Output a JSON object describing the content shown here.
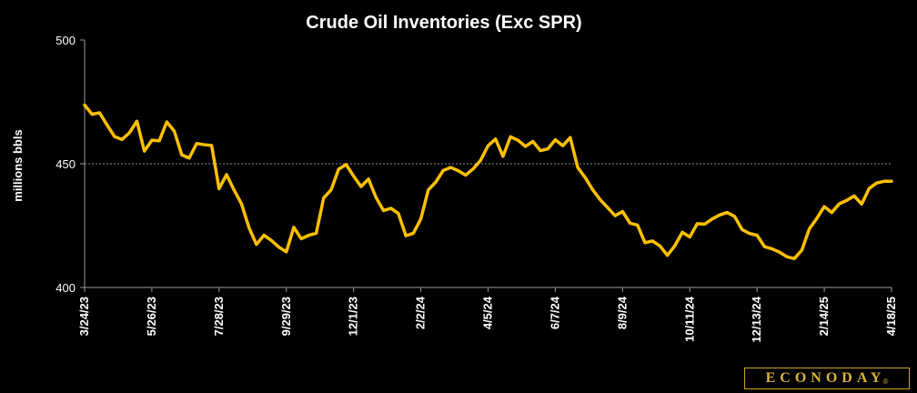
{
  "chart_data": {
    "type": "line",
    "title": "Crude Oil Inventories (Exc SPR)",
    "ylabel": "millions bbls",
    "xlabel": "",
    "ylim": [
      400,
      500
    ],
    "yticks": [
      400,
      450,
      500
    ],
    "grid_lines": [
      450
    ],
    "grid": false,
    "legend": "none",
    "x_tick_labels": [
      "3/24/23",
      "5/26/23",
      "7/28/23",
      "9/29/23",
      "12/1/23",
      "2/2/24",
      "4/5/24",
      "6/7/24",
      "8/9/24",
      "10/11/24",
      "12/13/24",
      "2/14/25",
      "4/18/25"
    ],
    "x_start": "3/24/23",
    "x_frequency": "weekly",
    "series": [
      {
        "color": "#ffc000",
        "values": [
          473.7,
          470.0,
          470.6,
          465.7,
          461.0,
          459.8,
          462.5,
          467.2,
          455.1,
          459.5,
          459.3,
          466.9,
          463.2,
          453.6,
          452.3,
          458.2,
          457.7,
          457.4,
          439.9,
          445.6,
          439.4,
          433.8,
          424.2,
          417.4,
          421.1,
          419.0,
          416.3,
          414.4,
          424.3,
          419.7,
          421.1,
          421.9,
          436.2,
          439.5,
          447.8,
          449.7,
          445.0,
          440.8,
          443.8,
          436.4,
          431.1,
          432.0,
          429.9,
          420.9,
          421.9,
          427.7,
          439.4,
          442.6,
          447.3,
          448.5,
          447.2,
          445.4,
          447.9,
          451.4,
          457.3,
          460.0,
          453.0,
          460.9,
          459.5,
          457.0,
          459.0,
          455.3,
          456.0,
          459.7,
          457.3,
          460.6,
          448.5,
          444.4,
          439.5,
          435.5,
          432.3,
          429.0,
          430.7,
          426.0,
          425.2,
          418.1,
          418.8,
          416.8,
          413.0,
          416.9,
          422.3,
          420.4,
          425.8,
          425.6,
          427.7,
          429.3,
          430.3,
          428.7,
          423.4,
          421.8,
          421.1,
          416.5,
          415.6,
          414.3,
          412.4,
          411.7,
          415.1,
          423.7,
          427.9,
          432.7,
          430.3,
          433.8,
          435.2,
          437.0,
          433.7,
          440.0,
          442.2,
          442.9,
          442.9
        ]
      }
    ]
  },
  "logo": {
    "text": "ECONODAY",
    "mark": "®",
    "color": "#d8b33a"
  }
}
